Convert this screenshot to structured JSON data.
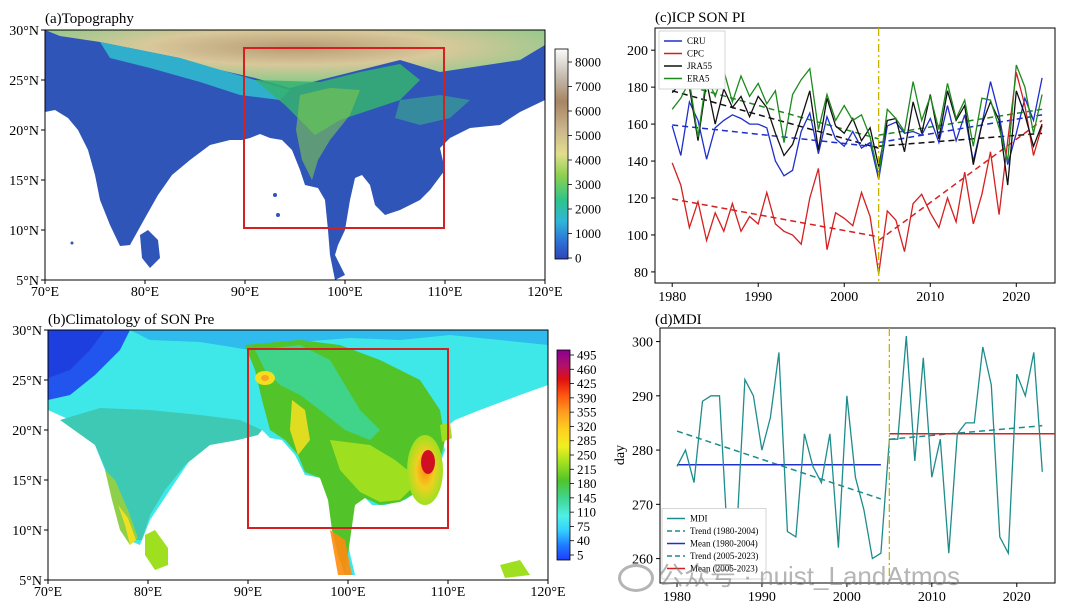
{
  "panels": {
    "a": {
      "title": "(a)Topography",
      "lon_ticks": [
        "70°E",
        "80°E",
        "90°E",
        "100°E",
        "110°E",
        "120°E"
      ],
      "lat_ticks": [
        "5°N",
        "10°N",
        "15°N",
        "20°N",
        "25°N",
        "30°N"
      ],
      "colorbar_ticks": [
        "0",
        "1000",
        "2000",
        "3000",
        "4000",
        "5000",
        "6000",
        "7000",
        "8000"
      ],
      "box_color": "#d42020"
    },
    "b": {
      "title": "(b)Climatology of SON Pre",
      "lon_ticks": [
        "70°E",
        "80°E",
        "90°E",
        "100°E",
        "110°E",
        "120°E"
      ],
      "lat_ticks": [
        "5°N",
        "10°N",
        "15°N",
        "20°N",
        "25°N",
        "30°N"
      ],
      "colorbar_ticks": [
        "5",
        "40",
        "75",
        "110",
        "145",
        "180",
        "215",
        "250",
        "285",
        "320",
        "355",
        "390",
        "425",
        "460",
        "495"
      ],
      "box_color": "#d42020"
    }
  },
  "watermark": "公众号 · nuist_LandAtmos",
  "chart_data": [
    {
      "type": "line",
      "title": "(c)ICP SON PI",
      "xlabel": "",
      "ylabel": "",
      "xlim": [
        1978,
        2024.5
      ],
      "ylim": [
        74,
        212
      ],
      "xticks": [
        1980,
        1990,
        2000,
        2010,
        2020
      ],
      "yticks": [
        80,
        100,
        120,
        140,
        160,
        180,
        200
      ],
      "breakpoint_year": 2004,
      "breakpoint_color": "#c8b400",
      "x": [
        1980,
        1981,
        1982,
        1983,
        1984,
        1985,
        1986,
        1987,
        1988,
        1989,
        1990,
        1991,
        1992,
        1993,
        1994,
        1995,
        1996,
        1997,
        1998,
        1999,
        2000,
        2001,
        2002,
        2003,
        2004,
        2005,
        2006,
        2007,
        2008,
        2009,
        2010,
        2011,
        2012,
        2013,
        2014,
        2015,
        2016,
        2017,
        2018,
        2019,
        2020,
        2021,
        2022,
        2023
      ],
      "series": [
        {
          "name": "CRU",
          "color": "#1f2fcc",
          "values": [
            159,
            143,
            172,
            162,
            141,
            158,
            162,
            165,
            163,
            160,
            160,
            158,
            140,
            132,
            135,
            156,
            166,
            144,
            164,
            152,
            148,
            156,
            147,
            150,
            130,
            159,
            161,
            155,
            156,
            154,
            163,
            150,
            170,
            151,
            165,
            140,
            160,
            183,
            165,
            138,
            155,
            174,
            162,
            185
          ]
        },
        {
          "name": "CPC",
          "color": "#d42020",
          "values": [
            139,
            127,
            104,
            118,
            97,
            112,
            102,
            117,
            102,
            110,
            106,
            123,
            106,
            102,
            100,
            95,
            120,
            136,
            92,
            112,
            109,
            105,
            123,
            110,
            79,
            113,
            108,
            91,
            117,
            122,
            112,
            104,
            120,
            107,
            134,
            106,
            122,
            145,
            111,
            151,
            188,
            170,
            143,
            159
          ]
        },
        {
          "name": "JRA55",
          "color": "#111111",
          "values": [
            177,
            182,
            180,
            151,
            183,
            160,
            179,
            169,
            175,
            164,
            175,
            169,
            155,
            143,
            149,
            163,
            178,
            146,
            174,
            159,
            155,
            163,
            151,
            158,
            137,
            162,
            163,
            145,
            172,
            155,
            176,
            152,
            178,
            162,
            170,
            138,
            160,
            172,
            162,
            127,
            178,
            165,
            148,
            160
          ]
        },
        {
          "name": "ERA5",
          "color": "#1e8a1e",
          "values": [
            168,
            174,
            183,
            153,
            186,
            175,
            189,
            172,
            186,
            175,
            182,
            171,
            178,
            150,
            176,
            184,
            190,
            157,
            176,
            162,
            170,
            162,
            165,
            153,
            132,
            168,
            163,
            156,
            183,
            162,
            175,
            157,
            182,
            163,
            173,
            148,
            174,
            173,
            158,
            140,
            192,
            180,
            155,
            176
          ]
        }
      ],
      "trends": [
        {
          "name": "CRU trend 1980-2004",
          "color": "#1f2fcc",
          "x": [
            1980,
            2004
          ],
          "values": [
            159.5,
            147.5
          ]
        },
        {
          "name": "CPC trend 1980-2004",
          "color": "#d42020",
          "x": [
            1980,
            2004
          ],
          "values": [
            119.5,
            99
          ]
        },
        {
          "name": "JRA55 trend 1980-2004",
          "color": "#111111",
          "x": [
            1980,
            2004
          ],
          "values": [
            178,
            147
          ]
        },
        {
          "name": "ERA5 trend 1980-2004",
          "color": "#1e8a1e",
          "x": [
            1980,
            2004
          ],
          "values": [
            183,
            152
          ]
        },
        {
          "name": "CRU trend 2005-2023",
          "color": "#1f2fcc",
          "x": [
            2004,
            2023
          ],
          "values": [
            150,
            165
          ]
        },
        {
          "name": "CPC trend 2005-2023",
          "color": "#d42020",
          "x": [
            2004,
            2023
          ],
          "values": [
            97,
            162
          ]
        },
        {
          "name": "JRA55 trend 2005-2023",
          "color": "#111111",
          "x": [
            2004,
            2023
          ],
          "values": [
            148,
            155
          ]
        },
        {
          "name": "ERA5 trend 2005-2023",
          "color": "#1e8a1e",
          "x": [
            2004,
            2023
          ],
          "values": [
            154,
            168
          ]
        }
      ],
      "legend": [
        "CRU",
        "CPC",
        "JRA55",
        "ERA5"
      ],
      "legend_position": "top-left"
    },
    {
      "type": "line",
      "title": "(d)MDI",
      "xlabel": "",
      "ylabel": "day",
      "xlim": [
        1978,
        2024.5
      ],
      "ylim": [
        255.5,
        302.5
      ],
      "xticks": [
        1980,
        1990,
        2000,
        2010,
        2020
      ],
      "yticks": [
        260,
        270,
        280,
        290,
        300
      ],
      "breakpoint_year": 2005,
      "breakpoint_color": "#c8b400",
      "x": [
        1980,
        1981,
        1982,
        1983,
        1984,
        1985,
        1986,
        1987,
        1988,
        1989,
        1990,
        1991,
        1992,
        1993,
        1994,
        1995,
        1996,
        1997,
        1998,
        1999,
        2000,
        2001,
        2002,
        2003,
        2004,
        2005,
        2006,
        2007,
        2008,
        2009,
        2010,
        2011,
        2012,
        2013,
        2014,
        2015,
        2016,
        2017,
        2018,
        2019,
        2020,
        2021,
        2022,
        2023
      ],
      "series": [
        {
          "name": "MDI",
          "color": "#1f8c8c",
          "values": [
            277,
            280,
            274,
            289,
            290,
            290,
            262,
            264,
            293,
            290,
            280,
            286,
            298,
            265,
            264,
            283,
            277,
            274,
            283,
            262,
            290,
            275,
            269,
            260,
            261,
            282,
            282,
            301,
            278,
            297,
            275,
            282,
            261,
            283,
            285,
            285,
            299,
            292,
            264,
            261,
            294,
            290,
            298,
            276
          ]
        }
      ],
      "trends": [
        {
          "name": "Trend (1980-2004)",
          "color": "#1f8c8c",
          "dash": true,
          "x": [
            1980,
            2004
          ],
          "values": [
            283.5,
            271
          ]
        },
        {
          "name": "Mean (1980-2004)",
          "color": "#1f2fcc",
          "dash": false,
          "x": [
            1980,
            2004
          ],
          "values": [
            277.3,
            277.3
          ]
        },
        {
          "name": "Trend (2005-2023)",
          "color": "#1f8c8c",
          "dash": true,
          "x": [
            2005,
            2023
          ],
          "values": [
            282,
            284.5
          ]
        },
        {
          "name": "Mean (2005-2023)",
          "color": "#d42020",
          "dash": false,
          "x": [
            2005,
            2024.5
          ],
          "values": [
            283,
            283
          ]
        }
      ],
      "legend": [
        "MDI",
        "Trend (1980-2004)",
        "Mean (1980-2004)",
        "Trend (2005-2023)",
        "Mean (2005-2023)"
      ],
      "legend_position": "bottom-left"
    }
  ]
}
